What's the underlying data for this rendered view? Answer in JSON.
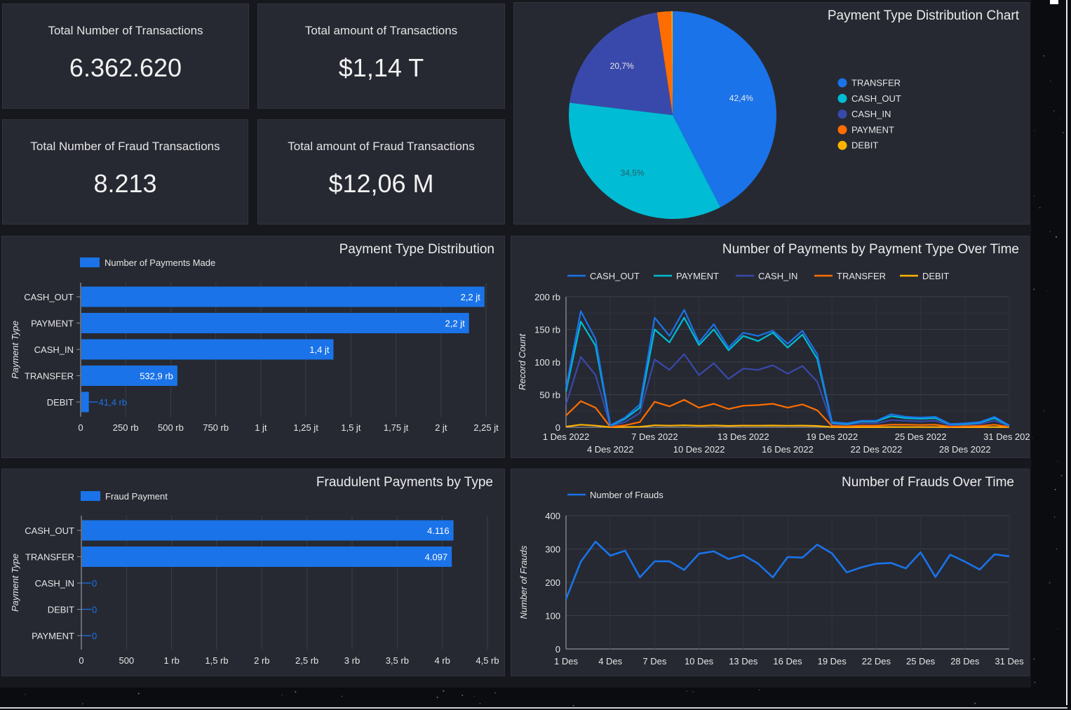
{
  "kpis": [
    {
      "title": "Total Number of Transactions",
      "value": "6.362.620"
    },
    {
      "title": "Total amount of Transactions",
      "value": "$1,14 T"
    },
    {
      "title": "Total Number of Fraud Transactions",
      "value": "8.213"
    },
    {
      "title": "Total amount of Fraud Transactions",
      "value": "$12,06 M"
    }
  ],
  "colors": {
    "transfer": "#1a73e8",
    "cash_out": "#00bcd4",
    "cash_in": "#3949ab",
    "payment": "#ff6d00",
    "debit": "#ffb300",
    "bar": "#1a73e8",
    "card_bg": "#262932"
  },
  "chart_data": [
    {
      "id": "pie",
      "type": "pie",
      "title": "Payment Type Distribution Chart",
      "slices": [
        {
          "label": "TRANSFER",
          "value": 42.4,
          "display": "42,4%",
          "color": "#1a73e8"
        },
        {
          "label": "CASH_OUT",
          "value": 34.5,
          "display": "34,5%",
          "color": "#00bcd4"
        },
        {
          "label": "CASH_IN",
          "value": 20.7,
          "display": "20,7%",
          "color": "#3949ab"
        },
        {
          "label": "PAYMENT",
          "value": 2.2,
          "display": "",
          "color": "#ff6d00"
        },
        {
          "label": "DEBIT",
          "value": 0.2,
          "display": "",
          "color": "#ffb300"
        }
      ],
      "legend": [
        "TRANSFER",
        "CASH_OUT",
        "CASH_IN",
        "PAYMENT",
        "DEBIT"
      ],
      "legend_position": "right"
    },
    {
      "id": "bar1",
      "type": "bar",
      "orientation": "horizontal",
      "title": "Payment Type Distribution",
      "legend": "Number of Payments Made",
      "ylabel": "Payment Type",
      "categories": [
        "CASH_OUT",
        "PAYMENT",
        "CASH_IN",
        "TRANSFER",
        "DEBIT"
      ],
      "values": [
        2237500,
        2151495,
        1399284,
        532909,
        41432
      ],
      "value_labels": [
        "2,2 jt",
        "2,2 jt",
        "1,4 jt",
        "532,9 rb",
        "41,4 rb"
      ],
      "xlim": [
        0,
        2250000
      ],
      "xticks": [
        "0",
        "250 rb",
        "500 rb",
        "750 rb",
        "1 jt",
        "1,25 jt",
        "1,5 jt",
        "1,75 jt",
        "2 jt",
        "2,25 jt"
      ]
    },
    {
      "id": "line1",
      "type": "line",
      "title": "Number of Payments by Payment Type Over Time",
      "ylabel": "Record Count",
      "ylim": [
        0,
        200000
      ],
      "yticks": [
        "0",
        "50 rb",
        "100 rb",
        "150 rb",
        "200 rb"
      ],
      "xticks_row1": [
        "1 Des 2022",
        "7 Des 2022",
        "13 Des 2022",
        "19 Des 2022",
        "25 Des 2022",
        "31 Des 2022"
      ],
      "xticks_row2": [
        "4 Des 2022",
        "10 Des 2022",
        "16 Des 2022",
        "22 Des 2022",
        "28 Des 2022"
      ],
      "x_days": [
        1,
        2,
        3,
        4,
        5,
        6,
        7,
        8,
        9,
        10,
        11,
        12,
        13,
        14,
        15,
        16,
        17,
        18,
        19,
        20,
        21,
        22,
        23,
        24,
        25,
        26,
        27,
        28,
        29,
        30,
        31
      ],
      "series": [
        {
          "name": "CASH_OUT",
          "color": "#1a73e8",
          "values": [
            60000,
            178000,
            135000,
            3000,
            15000,
            35000,
            168000,
            140000,
            180000,
            130000,
            158000,
            122000,
            145000,
            140000,
            148000,
            128000,
            148000,
            112000,
            8000,
            6000,
            10000,
            10000,
            20000,
            16000,
            15000,
            16000,
            5000,
            6000,
            8000,
            16000,
            3000
          ]
        },
        {
          "name": "PAYMENT",
          "color": "#00bcd4",
          "values": [
            55000,
            162000,
            125000,
            2500,
            13000,
            30000,
            150000,
            130000,
            168000,
            126000,
            150000,
            118000,
            140000,
            132000,
            145000,
            122000,
            142000,
            105000,
            7000,
            5000,
            9000,
            9000,
            17000,
            14000,
            13000,
            14000,
            4500,
            5000,
            7000,
            14000,
            2500
          ]
        },
        {
          "name": "CASH_IN",
          "color": "#3949ab",
          "values": [
            35000,
            108000,
            80000,
            2000,
            8000,
            22000,
            104000,
            88000,
            112000,
            80000,
            98000,
            74000,
            90000,
            88000,
            95000,
            82000,
            94000,
            70000,
            5000,
            4000,
            6000,
            6000,
            11000,
            10000,
            9000,
            10000,
            3000,
            4000,
            5000,
            10000,
            2000
          ]
        },
        {
          "name": "TRANSFER",
          "color": "#ff6d00",
          "values": [
            18000,
            40000,
            30000,
            500,
            3000,
            8000,
            39000,
            32000,
            42000,
            30000,
            36000,
            28000,
            33000,
            34000,
            36000,
            30000,
            35000,
            26000,
            2000,
            1500,
            2500,
            2500,
            4000,
            4000,
            3500,
            4000,
            1000,
            1500,
            2000,
            4000,
            500
          ]
        },
        {
          "name": "DEBIT",
          "color": "#ffb300",
          "values": [
            1000,
            4000,
            2500,
            100,
            300,
            800,
            3000,
            2500,
            3000,
            2300,
            2800,
            2200,
            2600,
            2500,
            2700,
            2400,
            2600,
            2000,
            200,
            100,
            200,
            200,
            400,
            300,
            300,
            300,
            100,
            100,
            200,
            300,
            100
          ]
        }
      ]
    },
    {
      "id": "bar2",
      "type": "bar",
      "orientation": "horizontal",
      "title": "Fraudulent Payments by Type",
      "legend": "Fraud Payment",
      "ylabel": "Payment Type",
      "categories": [
        "CASH_OUT",
        "TRANSFER",
        "CASH_IN",
        "DEBIT",
        "PAYMENT"
      ],
      "values": [
        4116,
        4097,
        0,
        0,
        0
      ],
      "value_labels": [
        "4.116",
        "4.097",
        "0",
        "0",
        "0"
      ],
      "xlim": [
        0,
        4500
      ],
      "xticks": [
        "0",
        "500",
        "1 rb",
        "1,5 rb",
        "2 rb",
        "2,5 rb",
        "3 rb",
        "3,5 rb",
        "4 rb",
        "4,5 rb"
      ]
    },
    {
      "id": "line2",
      "type": "line",
      "title": "Number of Frauds Over Time",
      "legend": "Number of Frauds",
      "ylabel": "Number of Frauds",
      "ylim": [
        0,
        400
      ],
      "yticks": [
        "0",
        "100",
        "200",
        "300",
        "400"
      ],
      "xticks": [
        "1 Des",
        "4 Des",
        "7 Des",
        "10 Des",
        "13 Des",
        "16 Des",
        "19 Des",
        "22 Des",
        "25 Des",
        "28 Des",
        "31 Des"
      ],
      "x_days": [
        1,
        2,
        3,
        4,
        5,
        6,
        7,
        8,
        9,
        10,
        11,
        12,
        13,
        14,
        15,
        16,
        17,
        18,
        19,
        20,
        21,
        22,
        23,
        24,
        25,
        26,
        27,
        28,
        29,
        30,
        31
      ],
      "series": [
        {
          "name": "Number of Frauds",
          "color": "#1a73e8",
          "values": [
            150,
            262,
            322,
            280,
            295,
            215,
            263,
            263,
            237,
            286,
            293,
            270,
            282,
            256,
            215,
            276,
            274,
            313,
            287,
            230,
            245,
            256,
            258,
            242,
            290,
            216,
            283,
            262,
            238,
            284,
            278
          ]
        }
      ]
    }
  ]
}
